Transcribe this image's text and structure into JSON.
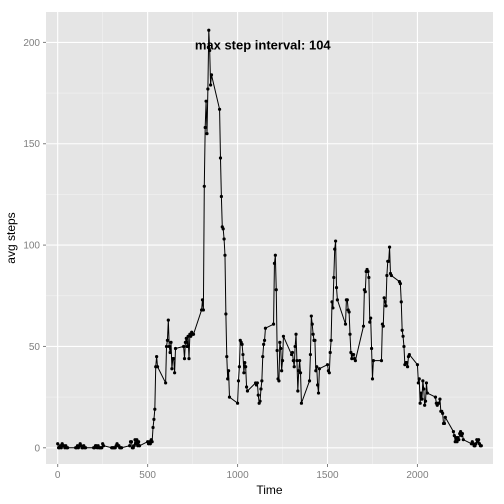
{
  "chart_data": {
    "type": "line",
    "xlabel": "Time",
    "ylabel": "avg steps",
    "xlim": [
      -65,
      2420
    ],
    "ylim": [
      -8,
      215
    ],
    "xticks": [
      0,
      500,
      1000,
      1500,
      2000
    ],
    "yticks": [
      0,
      50,
      100,
      150,
      200
    ],
    "annotation": {
      "text": "max step interval: 104",
      "x": 1140,
      "y": 199
    },
    "grid": true,
    "colors": {
      "panel": "#e5e5e5",
      "grid_major": "#ffffff",
      "grid_minor": "#f2f2f2",
      "line": "#000000",
      "point": "#000000"
    },
    "series": [
      {
        "points": [
          [
            0,
            2
          ],
          [
            5,
            0
          ],
          [
            10,
            0
          ],
          [
            15,
            1
          ],
          [
            20,
            0
          ],
          [
            25,
            2
          ],
          [
            30,
            1
          ],
          [
            35,
            1
          ],
          [
            40,
            0
          ],
          [
            45,
            1
          ],
          [
            50,
            0
          ],
          [
            55,
            0
          ],
          [
            100,
            0
          ],
          [
            105,
            0
          ],
          [
            110,
            1
          ],
          [
            115,
            0
          ],
          [
            120,
            1
          ],
          [
            125,
            2
          ],
          [
            130,
            1
          ],
          [
            135,
            0
          ],
          [
            140,
            0
          ],
          [
            145,
            1
          ],
          [
            150,
            0
          ],
          [
            155,
            0
          ],
          [
            200,
            0
          ],
          [
            205,
            0
          ],
          [
            210,
            1
          ],
          [
            215,
            1
          ],
          [
            220,
            0
          ],
          [
            225,
            1
          ],
          [
            230,
            0
          ],
          [
            235,
            0
          ],
          [
            240,
            0
          ],
          [
            245,
            0
          ],
          [
            250,
            2
          ],
          [
            255,
            1
          ],
          [
            300,
            0
          ],
          [
            305,
            0
          ],
          [
            310,
            0
          ],
          [
            315,
            0
          ],
          [
            320,
            0
          ],
          [
            325,
            1
          ],
          [
            330,
            2
          ],
          [
            335,
            1
          ],
          [
            340,
            1
          ],
          [
            345,
            0
          ],
          [
            350,
            0
          ],
          [
            355,
            0
          ],
          [
            400,
            1
          ],
          [
            405,
            3
          ],
          [
            410,
            3
          ],
          [
            415,
            0
          ],
          [
            420,
            0
          ],
          [
            425,
            1
          ],
          [
            430,
            4
          ],
          [
            435,
            2
          ],
          [
            440,
            4
          ],
          [
            445,
            1
          ],
          [
            450,
            3
          ],
          [
            455,
            1
          ],
          [
            500,
            3
          ],
          [
            505,
            2
          ],
          [
            510,
            3
          ],
          [
            515,
            2
          ],
          [
            520,
            4
          ],
          [
            525,
            3
          ],
          [
            530,
            10
          ],
          [
            535,
            14
          ],
          [
            540,
            19
          ],
          [
            545,
            40
          ],
          [
            550,
            45
          ],
          [
            555,
            40
          ],
          [
            600,
            32
          ],
          [
            605,
            50
          ],
          [
            610,
            53
          ],
          [
            615,
            63
          ],
          [
            620,
            50
          ],
          [
            625,
            47
          ],
          [
            630,
            52
          ],
          [
            635,
            39
          ],
          [
            640,
            44
          ],
          [
            645,
            44
          ],
          [
            650,
            37
          ],
          [
            655,
            49
          ],
          [
            700,
            50
          ],
          [
            705,
            44
          ],
          [
            710,
            52
          ],
          [
            715,
            54
          ],
          [
            720,
            50
          ],
          [
            725,
            55
          ],
          [
            730,
            44
          ],
          [
            735,
            56
          ],
          [
            740,
            55
          ],
          [
            745,
            57
          ],
          [
            750,
            56
          ],
          [
            755,
            56
          ],
          [
            800,
            68
          ],
          [
            805,
            73
          ],
          [
            810,
            68
          ],
          [
            815,
            129
          ],
          [
            820,
            158
          ],
          [
            825,
            171
          ],
          [
            830,
            155
          ],
          [
            835,
            177
          ],
          [
            840,
            206
          ],
          [
            845,
            196
          ],
          [
            850,
            179
          ],
          [
            855,
            184
          ],
          [
            900,
            167
          ],
          [
            905,
            143
          ],
          [
            910,
            124
          ],
          [
            915,
            109
          ],
          [
            920,
            108
          ],
          [
            925,
            103
          ],
          [
            930,
            95
          ],
          [
            935,
            66
          ],
          [
            940,
            45
          ],
          [
            945,
            34
          ],
          [
            950,
            38
          ],
          [
            955,
            25
          ],
          [
            1000,
            22
          ],
          [
            1005,
            33
          ],
          [
            1010,
            40
          ],
          [
            1015,
            53
          ],
          [
            1020,
            52
          ],
          [
            1025,
            51
          ],
          [
            1030,
            46
          ],
          [
            1035,
            37
          ],
          [
            1040,
            42
          ],
          [
            1045,
            40
          ],
          [
            1050,
            30
          ],
          [
            1055,
            28
          ],
          [
            1100,
            32
          ],
          [
            1105,
            31
          ],
          [
            1110,
            32
          ],
          [
            1115,
            26
          ],
          [
            1120,
            22
          ],
          [
            1125,
            23
          ],
          [
            1130,
            29
          ],
          [
            1135,
            33
          ],
          [
            1140,
            45
          ],
          [
            1145,
            51
          ],
          [
            1150,
            53
          ],
          [
            1155,
            59
          ],
          [
            1200,
            61
          ],
          [
            1205,
            91
          ],
          [
            1210,
            95
          ],
          [
            1215,
            78
          ],
          [
            1220,
            48
          ],
          [
            1225,
            34
          ],
          [
            1230,
            33
          ],
          [
            1235,
            52
          ],
          [
            1240,
            49
          ],
          [
            1245,
            38
          ],
          [
            1250,
            43
          ],
          [
            1255,
            55
          ],
          [
            1300,
            46
          ],
          [
            1305,
            47
          ],
          [
            1310,
            43
          ],
          [
            1315,
            40
          ],
          [
            1320,
            50
          ],
          [
            1325,
            56
          ],
          [
            1330,
            43
          ],
          [
            1335,
            28
          ],
          [
            1340,
            38
          ],
          [
            1345,
            43
          ],
          [
            1350,
            37
          ],
          [
            1355,
            22
          ],
          [
            1400,
            33
          ],
          [
            1405,
            46
          ],
          [
            1410,
            65
          ],
          [
            1415,
            61
          ],
          [
            1420,
            56
          ],
          [
            1425,
            53
          ],
          [
            1430,
            53
          ],
          [
            1435,
            38
          ],
          [
            1440,
            40
          ],
          [
            1445,
            31
          ],
          [
            1450,
            27
          ],
          [
            1455,
            39
          ],
          [
            1500,
            41
          ],
          [
            1505,
            38
          ],
          [
            1510,
            37
          ],
          [
            1515,
            47
          ],
          [
            1520,
            53
          ],
          [
            1525,
            72
          ],
          [
            1530,
            69
          ],
          [
            1535,
            84
          ],
          [
            1540,
            98
          ],
          [
            1545,
            102
          ],
          [
            1550,
            79
          ],
          [
            1555,
            73
          ],
          [
            1600,
            61
          ],
          [
            1605,
            73
          ],
          [
            1610,
            73
          ],
          [
            1615,
            68
          ],
          [
            1620,
            67
          ],
          [
            1625,
            56
          ],
          [
            1630,
            47
          ],
          [
            1635,
            44
          ],
          [
            1640,
            46
          ],
          [
            1645,
            46
          ],
          [
            1650,
            44
          ],
          [
            1655,
            43
          ],
          [
            1700,
            60
          ],
          [
            1705,
            78
          ],
          [
            1710,
            77
          ],
          [
            1715,
            87
          ],
          [
            1720,
            88
          ],
          [
            1725,
            87
          ],
          [
            1730,
            84
          ],
          [
            1735,
            62
          ],
          [
            1740,
            64
          ],
          [
            1745,
            49
          ],
          [
            1750,
            34
          ],
          [
            1755,
            43
          ],
          [
            1800,
            43
          ],
          [
            1805,
            61
          ],
          [
            1810,
            60
          ],
          [
            1815,
            74
          ],
          [
            1820,
            72
          ],
          [
            1825,
            70
          ],
          [
            1830,
            85
          ],
          [
            1835,
            92
          ],
          [
            1840,
            92
          ],
          [
            1845,
            99
          ],
          [
            1850,
            86
          ],
          [
            1855,
            85
          ],
          [
            1900,
            82
          ],
          [
            1905,
            81
          ],
          [
            1910,
            72
          ],
          [
            1915,
            58
          ],
          [
            1920,
            55
          ],
          [
            1925,
            50
          ],
          [
            1930,
            41
          ],
          [
            1935,
            42
          ],
          [
            1940,
            42
          ],
          [
            1945,
            40
          ],
          [
            1950,
            45
          ],
          [
            1955,
            46
          ],
          [
            2000,
            41
          ],
          [
            2005,
            32
          ],
          [
            2010,
            34
          ],
          [
            2015,
            22
          ],
          [
            2020,
            27
          ],
          [
            2025,
            24
          ],
          [
            2030,
            33
          ],
          [
            2035,
            29
          ],
          [
            2040,
            21
          ],
          [
            2045,
            23
          ],
          [
            2050,
            32
          ],
          [
            2055,
            27
          ],
          [
            2100,
            25
          ],
          [
            2105,
            22
          ],
          [
            2110,
            21
          ],
          [
            2115,
            22
          ],
          [
            2120,
            22
          ],
          [
            2125,
            24
          ],
          [
            2130,
            18
          ],
          [
            2135,
            18
          ],
          [
            2140,
            17
          ],
          [
            2145,
            12
          ],
          [
            2150,
            12
          ],
          [
            2155,
            15
          ],
          [
            2200,
            8
          ],
          [
            2205,
            6
          ],
          [
            2210,
            3
          ],
          [
            2215,
            5
          ],
          [
            2220,
            3
          ],
          [
            2225,
            5
          ],
          [
            2230,
            4
          ],
          [
            2235,
            7
          ],
          [
            2240,
            8
          ],
          [
            2245,
            6
          ],
          [
            2250,
            7
          ],
          [
            2255,
            4
          ],
          [
            2300,
            2
          ],
          [
            2305,
            3
          ],
          [
            2310,
            2
          ],
          [
            2315,
            1
          ],
          [
            2320,
            1
          ],
          [
            2325,
            2
          ],
          [
            2330,
            4
          ],
          [
            2335,
            3
          ],
          [
            2340,
            4
          ],
          [
            2345,
            2
          ],
          [
            2350,
            1
          ],
          [
            2355,
            1
          ]
        ]
      }
    ]
  }
}
